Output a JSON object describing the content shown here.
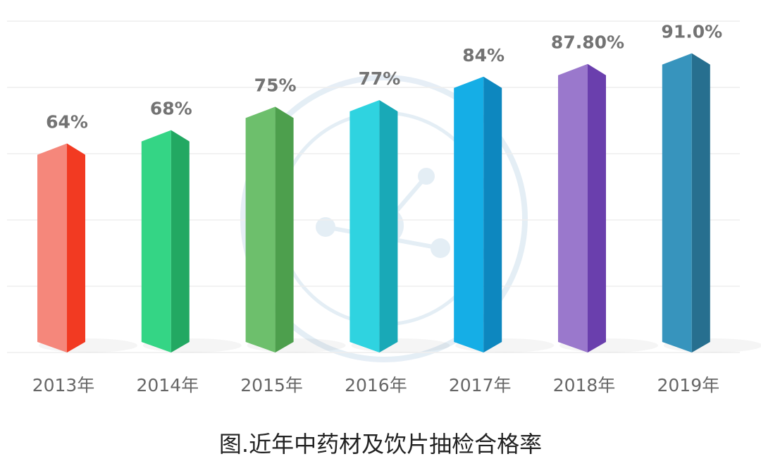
{
  "chart_data": {
    "type": "bar",
    "title": "图.近年中药材及饮片抽检合格率",
    "xlabel": "",
    "ylabel": "",
    "categories": [
      "2013年",
      "2014年",
      "2015年",
      "2016年",
      "2017年",
      "2018年",
      "2019年"
    ],
    "values": [
      64,
      68,
      75,
      77,
      84,
      87.8,
      91.0
    ],
    "data_labels": [
      "64%",
      "68%",
      "75%",
      "77%",
      "84%",
      "87.80%",
      "91.0%"
    ],
    "ylim": [
      8,
      98
    ],
    "grid": true,
    "legend": "none",
    "colors": [
      {
        "light": "#f5877b",
        "dark": "#f23a22"
      },
      {
        "light": "#34d585",
        "dark": "#22a862"
      },
      {
        "light": "#6dbf6c",
        "dark": "#4d9f4d"
      },
      {
        "light": "#2fd3e0",
        "dark": "#19a9b7"
      },
      {
        "light": "#15aee6",
        "dark": "#0d87bf"
      },
      {
        "light": "#9a78cc",
        "dark": "#6a3fad"
      },
      {
        "light": "#3794bd",
        "dark": "#276f8f"
      }
    ]
  }
}
